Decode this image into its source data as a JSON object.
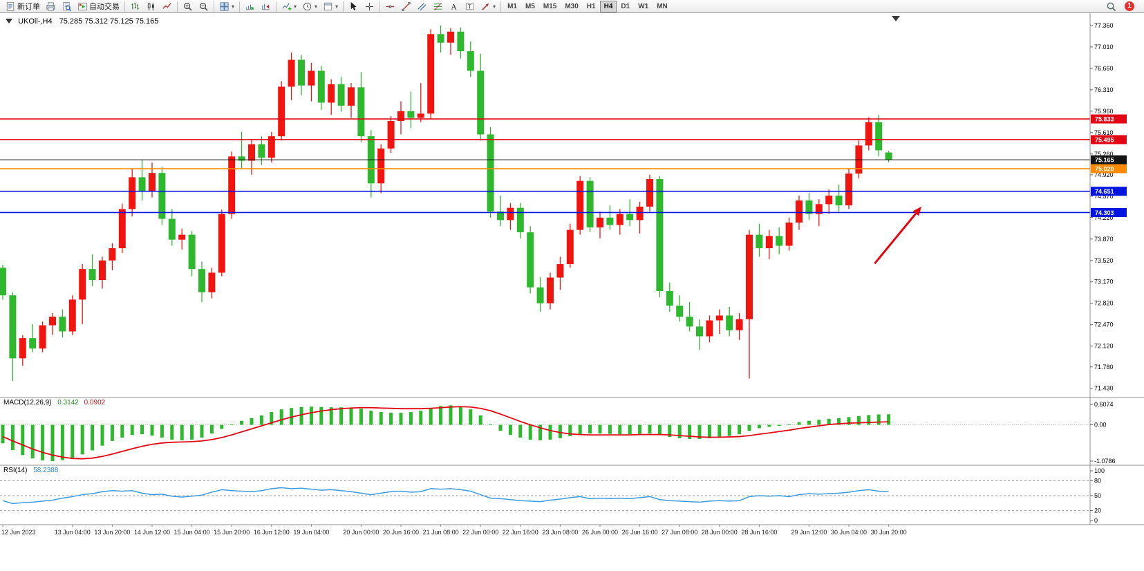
{
  "toolbar": {
    "groups": [
      {
        "items": [
          {
            "name": "new-order-button",
            "icon": "new-order-icon",
            "label": "新订单"
          },
          {
            "name": "print-button",
            "icon": "print-icon"
          },
          {
            "name": "print-preview-button",
            "icon": "print-preview-icon"
          },
          {
            "name": "autotrading-button",
            "icon": "autotrading-icon",
            "label": "自动交易"
          }
        ]
      },
      {
        "items": [
          {
            "name": "bar-chart-button",
            "icon": "bar-chart-icon"
          },
          {
            "name": "candle-chart-button",
            "icon": "candle-chart-icon"
          },
          {
            "name": "line-chart-button",
            "icon": "line-chart-icon"
          }
        ]
      },
      {
        "items": [
          {
            "name": "zoom-in-button",
            "icon": "zoom-in-icon"
          },
          {
            "name": "zoom-out-button",
            "icon": "zoom-out-icon"
          }
        ]
      },
      {
        "items": [
          {
            "name": "tile-windows-button",
            "icon": "tile-windows-icon",
            "caret": true
          }
        ]
      },
      {
        "items": [
          {
            "name": "auto-scroll-button",
            "icon": "auto-scroll-icon"
          },
          {
            "name": "chart-shift-button",
            "icon": "chart-shift-icon"
          }
        ]
      },
      {
        "items": [
          {
            "name": "indicators-button",
            "icon": "indicators-icon",
            "caret": true
          },
          {
            "name": "periods-button",
            "icon": "clock-icon",
            "caret": true
          },
          {
            "name": "templates-button",
            "icon": "template-icon",
            "caret": true
          }
        ]
      },
      {
        "items": [
          {
            "name": "cursor-button",
            "icon": "cursor-icon"
          },
          {
            "name": "crosshair-button",
            "icon": "crosshair-icon"
          }
        ]
      },
      {
        "items": [
          {
            "name": "horizontal-line-button",
            "icon": "hline-icon"
          },
          {
            "name": "trendline-button",
            "icon": "trendline-icon"
          },
          {
            "name": "channel-button",
            "icon": "channel-icon"
          },
          {
            "name": "fibonacci-button",
            "icon": "fibonacci-icon"
          },
          {
            "name": "text-button",
            "icon": "text-icon"
          },
          {
            "name": "label-button",
            "icon": "label-icon"
          },
          {
            "name": "arrows-button",
            "icon": "arrow-tool-icon",
            "caret": true
          }
        ]
      },
      {
        "items": [
          {
            "name": "period-m1-button",
            "label": "M1",
            "period": true
          },
          {
            "name": "period-m5-button",
            "label": "M5",
            "period": true
          },
          {
            "name": "period-m15-button",
            "label": "M15",
            "period": true
          },
          {
            "name": "period-m30-button",
            "label": "M30",
            "period": true
          },
          {
            "name": "period-h1-button",
            "label": "H1",
            "period": true
          },
          {
            "name": "period-h4-button",
            "label": "H4",
            "period": true,
            "active": true
          },
          {
            "name": "period-d1-button",
            "label": "D1",
            "period": true
          },
          {
            "name": "period-w1-button",
            "label": "W1",
            "period": true
          },
          {
            "name": "period-mn-button",
            "label": "MN",
            "period": true
          }
        ]
      }
    ],
    "right_items": [
      {
        "name": "search-button",
        "icon": "search-icon"
      },
      {
        "name": "alerts-badge",
        "label": "1",
        "badge": true
      }
    ]
  },
  "chart_data": {
    "type": "candlestick",
    "symbol": "UKOil-",
    "timeframe": "H4",
    "title_symbol": "UKOil-,H4",
    "title_ohlc": "75.285 75.312 75.125 75.165",
    "colors": {
      "up": "#f2150f",
      "down": "#2db82d",
      "macd_histogram": "#2db82d",
      "macd_signal": "#e30613",
      "rsi_line": "#3d9be0",
      "level_red": "#e30613",
      "level_blue": "#0016e0",
      "level_orange": "#ff8a00",
      "current_price": "#141414"
    },
    "price_axis_ticks": [
      "77.360",
      "77.010",
      "76.660",
      "76.310",
      "75.960",
      "75.610",
      "75.260",
      "74.920",
      "74.570",
      "74.220",
      "73.870",
      "73.520",
      "73.170",
      "72.820",
      "72.470",
      "72.120",
      "71.780",
      "71.430"
    ],
    "price_range": {
      "max": 77.54,
      "min": 71.28
    },
    "candles": [
      [
        73.4,
        73.45,
        72.88,
        72.95
      ],
      [
        72.95,
        73.0,
        71.55,
        71.92
      ],
      [
        71.92,
        72.3,
        71.8,
        72.25
      ],
      [
        72.25,
        72.48,
        72.02,
        72.08
      ],
      [
        72.08,
        72.52,
        72.02,
        72.46
      ],
      [
        72.46,
        72.66,
        72.3,
        72.6
      ],
      [
        72.6,
        72.72,
        72.26,
        72.36
      ],
      [
        72.36,
        72.95,
        72.3,
        72.88
      ],
      [
        72.88,
        73.46,
        72.48,
        73.38
      ],
      [
        73.38,
        73.62,
        73.1,
        73.2
      ],
      [
        73.2,
        73.58,
        73.06,
        73.52
      ],
      [
        73.52,
        73.8,
        73.36,
        73.72
      ],
      [
        73.72,
        74.45,
        73.64,
        74.36
      ],
      [
        74.36,
        75.02,
        74.24,
        74.88
      ],
      [
        74.88,
        75.16,
        74.5,
        74.65
      ],
      [
        74.65,
        75.12,
        74.55,
        74.95
      ],
      [
        74.95,
        75.05,
        74.1,
        74.2
      ],
      [
        74.2,
        74.36,
        73.76,
        73.86
      ],
      [
        73.86,
        74.04,
        73.7,
        73.94
      ],
      [
        73.94,
        74.0,
        73.26,
        73.38
      ],
      [
        73.38,
        73.5,
        72.84,
        73.0
      ],
      [
        73.0,
        73.4,
        72.9,
        73.32
      ],
      [
        73.32,
        74.35,
        73.26,
        74.28
      ],
      [
        74.28,
        75.3,
        74.2,
        75.22
      ],
      [
        75.22,
        75.62,
        75.02,
        75.15
      ],
      [
        75.15,
        75.5,
        74.92,
        75.42
      ],
      [
        75.42,
        75.55,
        75.08,
        75.2
      ],
      [
        75.2,
        75.62,
        75.12,
        75.55
      ],
      [
        75.55,
        76.45,
        75.48,
        76.36
      ],
      [
        76.36,
        76.92,
        76.14,
        76.8
      ],
      [
        76.8,
        76.88,
        76.22,
        76.38
      ],
      [
        76.38,
        76.75,
        76.12,
        76.62
      ],
      [
        76.62,
        76.7,
        75.98,
        76.1
      ],
      [
        76.1,
        76.48,
        75.9,
        76.4
      ],
      [
        76.4,
        76.52,
        75.95,
        76.05
      ],
      [
        76.05,
        76.42,
        75.85,
        76.35
      ],
      [
        76.35,
        76.6,
        75.45,
        75.55
      ],
      [
        75.55,
        75.65,
        74.55,
        74.78
      ],
      [
        74.78,
        75.42,
        74.62,
        75.35
      ],
      [
        75.35,
        75.88,
        75.28,
        75.8
      ],
      [
        75.8,
        76.12,
        75.58,
        75.96
      ],
      [
        75.96,
        76.28,
        75.68,
        75.85
      ],
      [
        75.85,
        76.42,
        75.78,
        75.92
      ],
      [
        75.92,
        77.3,
        75.84,
        77.22
      ],
      [
        77.22,
        77.36,
        76.92,
        77.08
      ],
      [
        77.08,
        77.32,
        76.88,
        77.26
      ],
      [
        77.26,
        77.33,
        76.82,
        76.94
      ],
      [
        76.94,
        77.1,
        76.52,
        76.62
      ],
      [
        76.62,
        76.9,
        75.48,
        75.58
      ],
      [
        75.58,
        75.7,
        74.22,
        74.32
      ],
      [
        74.32,
        74.58,
        74.08,
        74.18
      ],
      [
        74.18,
        74.46,
        74.02,
        74.38
      ],
      [
        74.38,
        74.46,
        73.88,
        73.98
      ],
      [
        73.98,
        74.08,
        72.98,
        73.08
      ],
      [
        73.08,
        73.25,
        72.68,
        72.82
      ],
      [
        72.82,
        73.32,
        72.72,
        73.24
      ],
      [
        73.24,
        73.58,
        73.04,
        73.46
      ],
      [
        73.46,
        74.12,
        73.4,
        74.02
      ],
      [
        74.02,
        74.9,
        73.94,
        74.82
      ],
      [
        74.82,
        74.88,
        73.98,
        74.06
      ],
      [
        74.06,
        74.32,
        73.88,
        74.22
      ],
      [
        74.22,
        74.42,
        74.02,
        74.1
      ],
      [
        74.1,
        74.36,
        73.94,
        74.28
      ],
      [
        74.28,
        74.52,
        74.08,
        74.18
      ],
      [
        74.18,
        74.48,
        73.96,
        74.4
      ],
      [
        74.4,
        74.92,
        74.32,
        74.85
      ],
      [
        74.85,
        74.9,
        72.92,
        73.02
      ],
      [
        73.02,
        73.16,
        72.68,
        72.78
      ],
      [
        72.78,
        72.95,
        72.52,
        72.6
      ],
      [
        72.6,
        72.84,
        72.36,
        72.44
      ],
      [
        72.44,
        72.56,
        72.06,
        72.28
      ],
      [
        72.28,
        72.62,
        72.18,
        72.54
      ],
      [
        72.54,
        72.72,
        72.32,
        72.62
      ],
      [
        72.62,
        72.76,
        72.28,
        72.38
      ],
      [
        72.38,
        72.66,
        72.22,
        72.56
      ],
      [
        72.56,
        74.02,
        71.59,
        73.94
      ],
      [
        73.94,
        74.12,
        73.58,
        73.72
      ],
      [
        73.72,
        74.02,
        73.54,
        73.92
      ],
      [
        73.92,
        74.06,
        73.62,
        73.76
      ],
      [
        73.76,
        74.22,
        73.68,
        74.14
      ],
      [
        74.14,
        74.58,
        74.02,
        74.5
      ],
      [
        74.5,
        74.62,
        74.18,
        74.28
      ],
      [
        74.28,
        74.52,
        74.08,
        74.44
      ],
      [
        74.44,
        74.68,
        74.28,
        74.58
      ],
      [
        74.58,
        74.76,
        74.32,
        74.42
      ],
      [
        74.42,
        75.02,
        74.36,
        74.94
      ],
      [
        74.94,
        75.48,
        74.86,
        75.4
      ],
      [
        75.4,
        75.86,
        75.32,
        75.78
      ],
      [
        75.78,
        75.9,
        75.22,
        75.32
      ],
      [
        75.285,
        75.312,
        75.125,
        75.165
      ]
    ],
    "levels": [
      {
        "name": "resistance-line-1",
        "price": 75.833,
        "label": "75.833",
        "color": "#e30613",
        "width": 1.6
      },
      {
        "name": "resistance-line-2",
        "price": 75.495,
        "label": "75.495",
        "color": "#e30613",
        "width": 1.6
      },
      {
        "name": "current-price-line",
        "price": 75.165,
        "label": "75.165",
        "color": "#141414",
        "width": 1
      },
      {
        "name": "pivot-line",
        "price": 75.02,
        "label": "75.020",
        "color": "#ff8a00",
        "width": 1.6
      },
      {
        "name": "support-line-1",
        "price": 74.651,
        "label": "74.651",
        "color": "#0016e0",
        "width": 1.6
      },
      {
        "name": "support-line-2",
        "price": 74.303,
        "label": "74.303",
        "color": "#0016e0",
        "width": 1.6
      }
    ],
    "time_labels": [
      {
        "i": 0,
        "t": "12 Jun 2023"
      },
      {
        "i": 7,
        "t": "13 Jun 04:00"
      },
      {
        "i": 11,
        "t": "13 Jun 20:00"
      },
      {
        "i": 15,
        "t": "14 Jun 12:00"
      },
      {
        "i": 19,
        "t": "15 Jun 04:00"
      },
      {
        "i": 23,
        "t": "15 Jun 20:00"
      },
      {
        "i": 27,
        "t": "16 Jun 12:00"
      },
      {
        "i": 31,
        "t": "19 Jun 04:00"
      },
      {
        "i": 36,
        "t": "20 Jun 00:00"
      },
      {
        "i": 40,
        "t": "20 Jun 16:00"
      },
      {
        "i": 44,
        "t": "21 Jun 08:00"
      },
      {
        "i": 48,
        "t": "22 Jun 00:00"
      },
      {
        "i": 52,
        "t": "22 Jun 16:00"
      },
      {
        "i": 56,
        "t": "23 Jun 08:00"
      },
      {
        "i": 60,
        "t": "26 Jun 00:00"
      },
      {
        "i": 64,
        "t": "26 Jun 16:00"
      },
      {
        "i": 68,
        "t": "27 Jun 08:00"
      },
      {
        "i": 72,
        "t": "28 Jun 00:00"
      },
      {
        "i": 76,
        "t": "28 Jun 16:00"
      },
      {
        "i": 81,
        "t": "29 Jun 12:00"
      },
      {
        "i": 85,
        "t": "30 Jun 04:00"
      },
      {
        "i": 89,
        "t": "30 Jun 20:00"
      }
    ],
    "macd": {
      "title": "MACD(12,26,9)",
      "value": "0.3142",
      "signal_value": "0.0902",
      "scale_max": 0.6074,
      "scale_min": -1.0786,
      "axis": [
        {
          "v": 0.6074,
          "t": "0.6074"
        },
        {
          "v": 0,
          "t": "0.00"
        },
        {
          "v": -1.0786,
          "t": "-1.0786"
        }
      ],
      "histogram": [
        -0.55,
        -0.75,
        -0.9,
        -1.0,
        -1.06,
        -1.0786,
        -1.05,
        -0.98,
        -0.88,
        -0.76,
        -0.62,
        -0.48,
        -0.38,
        -0.3,
        -0.28,
        -0.32,
        -0.38,
        -0.44,
        -0.46,
        -0.44,
        -0.38,
        -0.26,
        -0.12,
        0.02,
        0.12,
        0.2,
        0.28,
        0.38,
        0.46,
        0.5,
        0.53,
        0.54,
        0.53,
        0.52,
        0.52,
        0.51,
        0.48,
        0.42,
        0.38,
        0.36,
        0.36,
        0.38,
        0.42,
        0.5,
        0.56,
        0.58,
        0.55,
        0.46,
        0.28,
        0.02,
        -0.18,
        -0.3,
        -0.38,
        -0.44,
        -0.46,
        -0.44,
        -0.4,
        -0.34,
        -0.28,
        -0.26,
        -0.26,
        -0.27,
        -0.28,
        -0.28,
        -0.27,
        -0.26,
        -0.3,
        -0.36,
        -0.4,
        -0.42,
        -0.42,
        -0.4,
        -0.37,
        -0.33,
        -0.28,
        -0.18,
        -0.1,
        -0.06,
        -0.03,
        0.02,
        0.08,
        0.12,
        0.15,
        0.18,
        0.2,
        0.23,
        0.26,
        0.29,
        0.31,
        0.3142
      ],
      "signal": [
        -0.35,
        -0.48,
        -0.6,
        -0.72,
        -0.82,
        -0.9,
        -0.96,
        -1.0,
        -1.01,
        -0.99,
        -0.94,
        -0.87,
        -0.79,
        -0.71,
        -0.64,
        -0.58,
        -0.54,
        -0.52,
        -0.51,
        -0.5,
        -0.48,
        -0.44,
        -0.38,
        -0.3,
        -0.21,
        -0.12,
        -0.03,
        0.06,
        0.15,
        0.23,
        0.3,
        0.36,
        0.41,
        0.45,
        0.48,
        0.5,
        0.51,
        0.51,
        0.5,
        0.49,
        0.48,
        0.48,
        0.48,
        0.49,
        0.51,
        0.53,
        0.54,
        0.53,
        0.49,
        0.42,
        0.32,
        0.21,
        0.1,
        0.0,
        -0.09,
        -0.17,
        -0.23,
        -0.27,
        -0.29,
        -0.3,
        -0.3,
        -0.3,
        -0.3,
        -0.3,
        -0.29,
        -0.29,
        -0.29,
        -0.3,
        -0.32,
        -0.34,
        -0.36,
        -0.37,
        -0.37,
        -0.36,
        -0.35,
        -0.32,
        -0.28,
        -0.24,
        -0.2,
        -0.16,
        -0.11,
        -0.07,
        -0.03,
        0.01,
        0.03,
        0.05,
        0.06,
        0.07,
        0.08,
        0.0902
      ]
    },
    "rsi": {
      "title": "RSI(14)",
      "value": "58.2388",
      "levels": [
        80,
        50,
        20
      ],
      "axis": [
        {
          "v": 100,
          "t": "100"
        },
        {
          "v": 80,
          "t": "80"
        },
        {
          "v": 50,
          "t": "50"
        },
        {
          "v": 20,
          "t": "20"
        },
        {
          "v": 0,
          "t": "0"
        }
      ],
      "values": [
        40,
        34,
        36,
        37,
        39,
        41,
        45,
        48,
        52,
        54,
        58,
        60,
        59,
        60,
        55,
        52,
        53,
        49,
        47,
        49,
        51,
        57,
        62,
        60,
        59,
        58,
        60,
        64,
        66,
        64,
        65,
        63,
        61,
        62,
        60,
        58,
        55,
        52,
        55,
        58,
        59,
        57,
        58,
        64,
        63,
        64,
        62,
        59,
        52,
        45,
        44,
        42,
        40,
        39,
        38,
        41,
        43,
        46,
        48,
        44,
        45,
        44,
        45,
        44,
        46,
        48,
        42,
        40,
        39,
        38,
        37,
        39,
        40,
        39,
        40,
        48,
        50,
        49,
        50,
        48,
        52,
        54,
        53,
        54,
        55,
        57,
        60,
        62,
        59,
        58.24
      ]
    },
    "annotations": [
      {
        "type": "arrow",
        "name": "trend-arrow",
        "from": {
          "index": 87.6,
          "price": 73.47
        },
        "to": {
          "index": 92.3,
          "price": 74.4
        },
        "color": "#e30613",
        "width": 3
      }
    ]
  }
}
